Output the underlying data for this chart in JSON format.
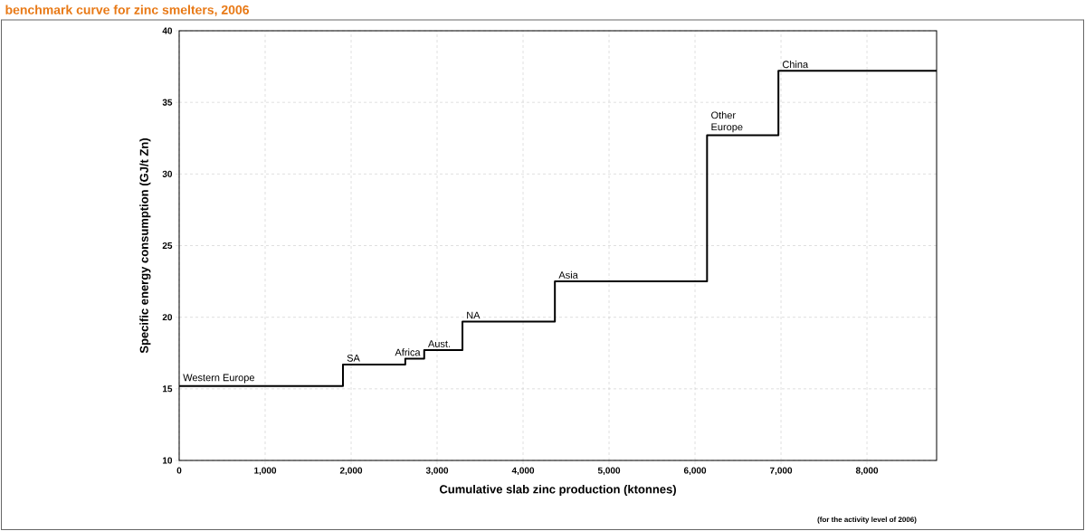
{
  "chart_data": {
    "type": "step",
    "title": "benchmark curve for zinc smelters, 2006",
    "xlabel": "Cumulative slab zinc production (ktonnes)",
    "ylabel": "Specific energy consumption (GJ/t Zn)",
    "x": [
      0,
      1905,
      2630,
      2850,
      3295,
      4370,
      6140,
      6970,
      8810
    ],
    "series": [
      {
        "color": "#000000",
        "values": [
          15.2,
          16.7,
          17.1,
          17.7,
          19.7,
          22.5,
          32.7,
          37.2,
          37.2
        ]
      }
    ],
    "xlim": [
      0,
      8810
    ],
    "ylim": [
      10,
      40
    ],
    "xticks": [
      0,
      {
        "value": 1000,
        "label": "1,000"
      },
      {
        "value": 2000,
        "label": "2,000"
      },
      {
        "value": 3000,
        "label": "3,000"
      },
      {
        "value": 4000,
        "label": "4,000"
      },
      {
        "value": 5000,
        "label": "5,000"
      },
      {
        "value": 6000,
        "label": "6,000"
      },
      {
        "value": 7000,
        "label": "7,000"
      },
      {
        "value": 8000,
        "label": "8,000"
      }
    ],
    "yticks": [
      10,
      15,
      20,
      25,
      30,
      35,
      40
    ],
    "grid": true,
    "marker": "none",
    "line_style": "solid",
    "annotations": [
      {
        "text": "Western Europe",
        "x": 0,
        "y": 15.2
      },
      {
        "text": "SA",
        "x": 1905,
        "y": 16.7
      },
      {
        "text": "Africa",
        "x": 2630,
        "y": 17.1
      },
      {
        "text": "Aust.",
        "x": 2850,
        "y": 17.7
      },
      {
        "text": "NA",
        "x": 3295,
        "y": 19.7
      },
      {
        "text": "Asia",
        "x": 4370,
        "y": 22.5
      },
      {
        "text": "Other Europe",
        "x": 6140,
        "y": 32.7
      },
      {
        "text": "China",
        "x": 6970,
        "y": 37.2
      },
      "(for the activity level of 2006)"
    ]
  }
}
